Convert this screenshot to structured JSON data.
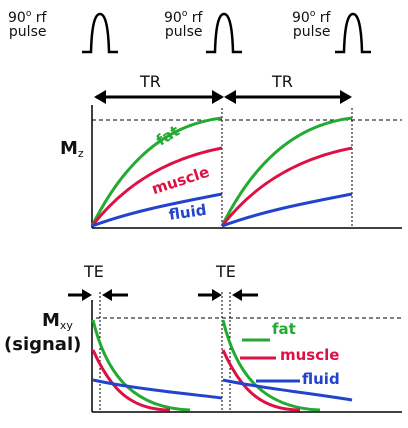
{
  "pulses": [
    {
      "deg": "90",
      "sup": "o",
      "word1": "rf",
      "word2": "pulse"
    },
    {
      "deg": "90",
      "sup": "o",
      "word1": "rf",
      "word2": "pulse"
    },
    {
      "deg": "90",
      "sup": "o",
      "word1": "rf",
      "word2": "pulse"
    }
  ],
  "tr_labels": [
    "TR",
    "TR"
  ],
  "te_labels": [
    "TE",
    "TE"
  ],
  "mz_axis": {
    "main": "M",
    "sub": "z"
  },
  "mxy_axis": {
    "main": "M",
    "sub": "xy",
    "line2": "(signal)"
  },
  "tissues": [
    {
      "name": "fat",
      "color": "#22aa33"
    },
    {
      "name": "muscle",
      "color": "#dd1144"
    },
    {
      "name": "fluid",
      "color": "#2244cc"
    }
  ],
  "colors": {
    "axis": "#000000",
    "dashed": "#000000",
    "pulse": "#000000"
  }
}
